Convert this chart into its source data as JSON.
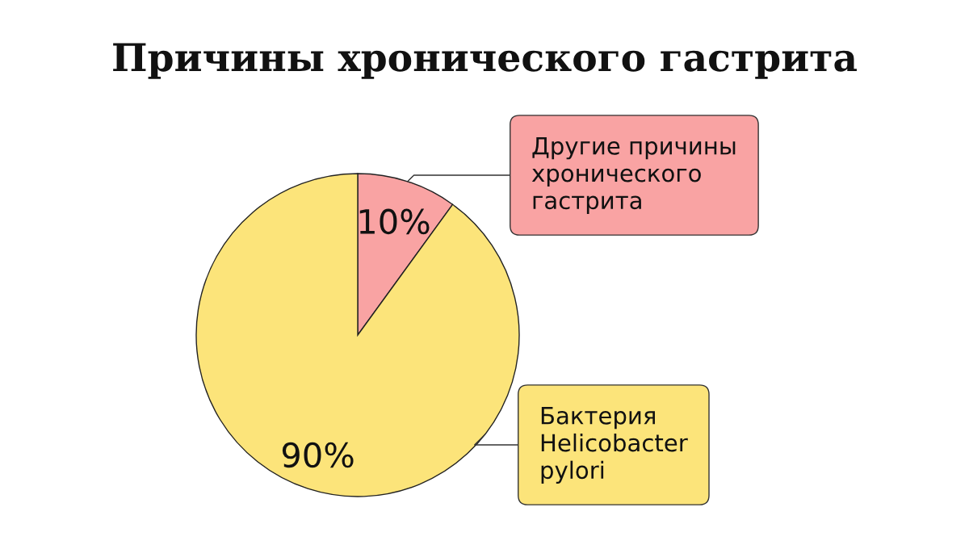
{
  "chart_data": {
    "type": "pie",
    "title": "Причины хронического гастрита",
    "categories": [
      "Другие причины\nхронического\nгастрита",
      "Бактерия\nHelicobacter\npylori"
    ],
    "values": [
      10,
      90
    ],
    "colors": [
      "#f9a3a3",
      "#fce47a"
    ],
    "value_labels": [
      "10%",
      "90%"
    ]
  }
}
